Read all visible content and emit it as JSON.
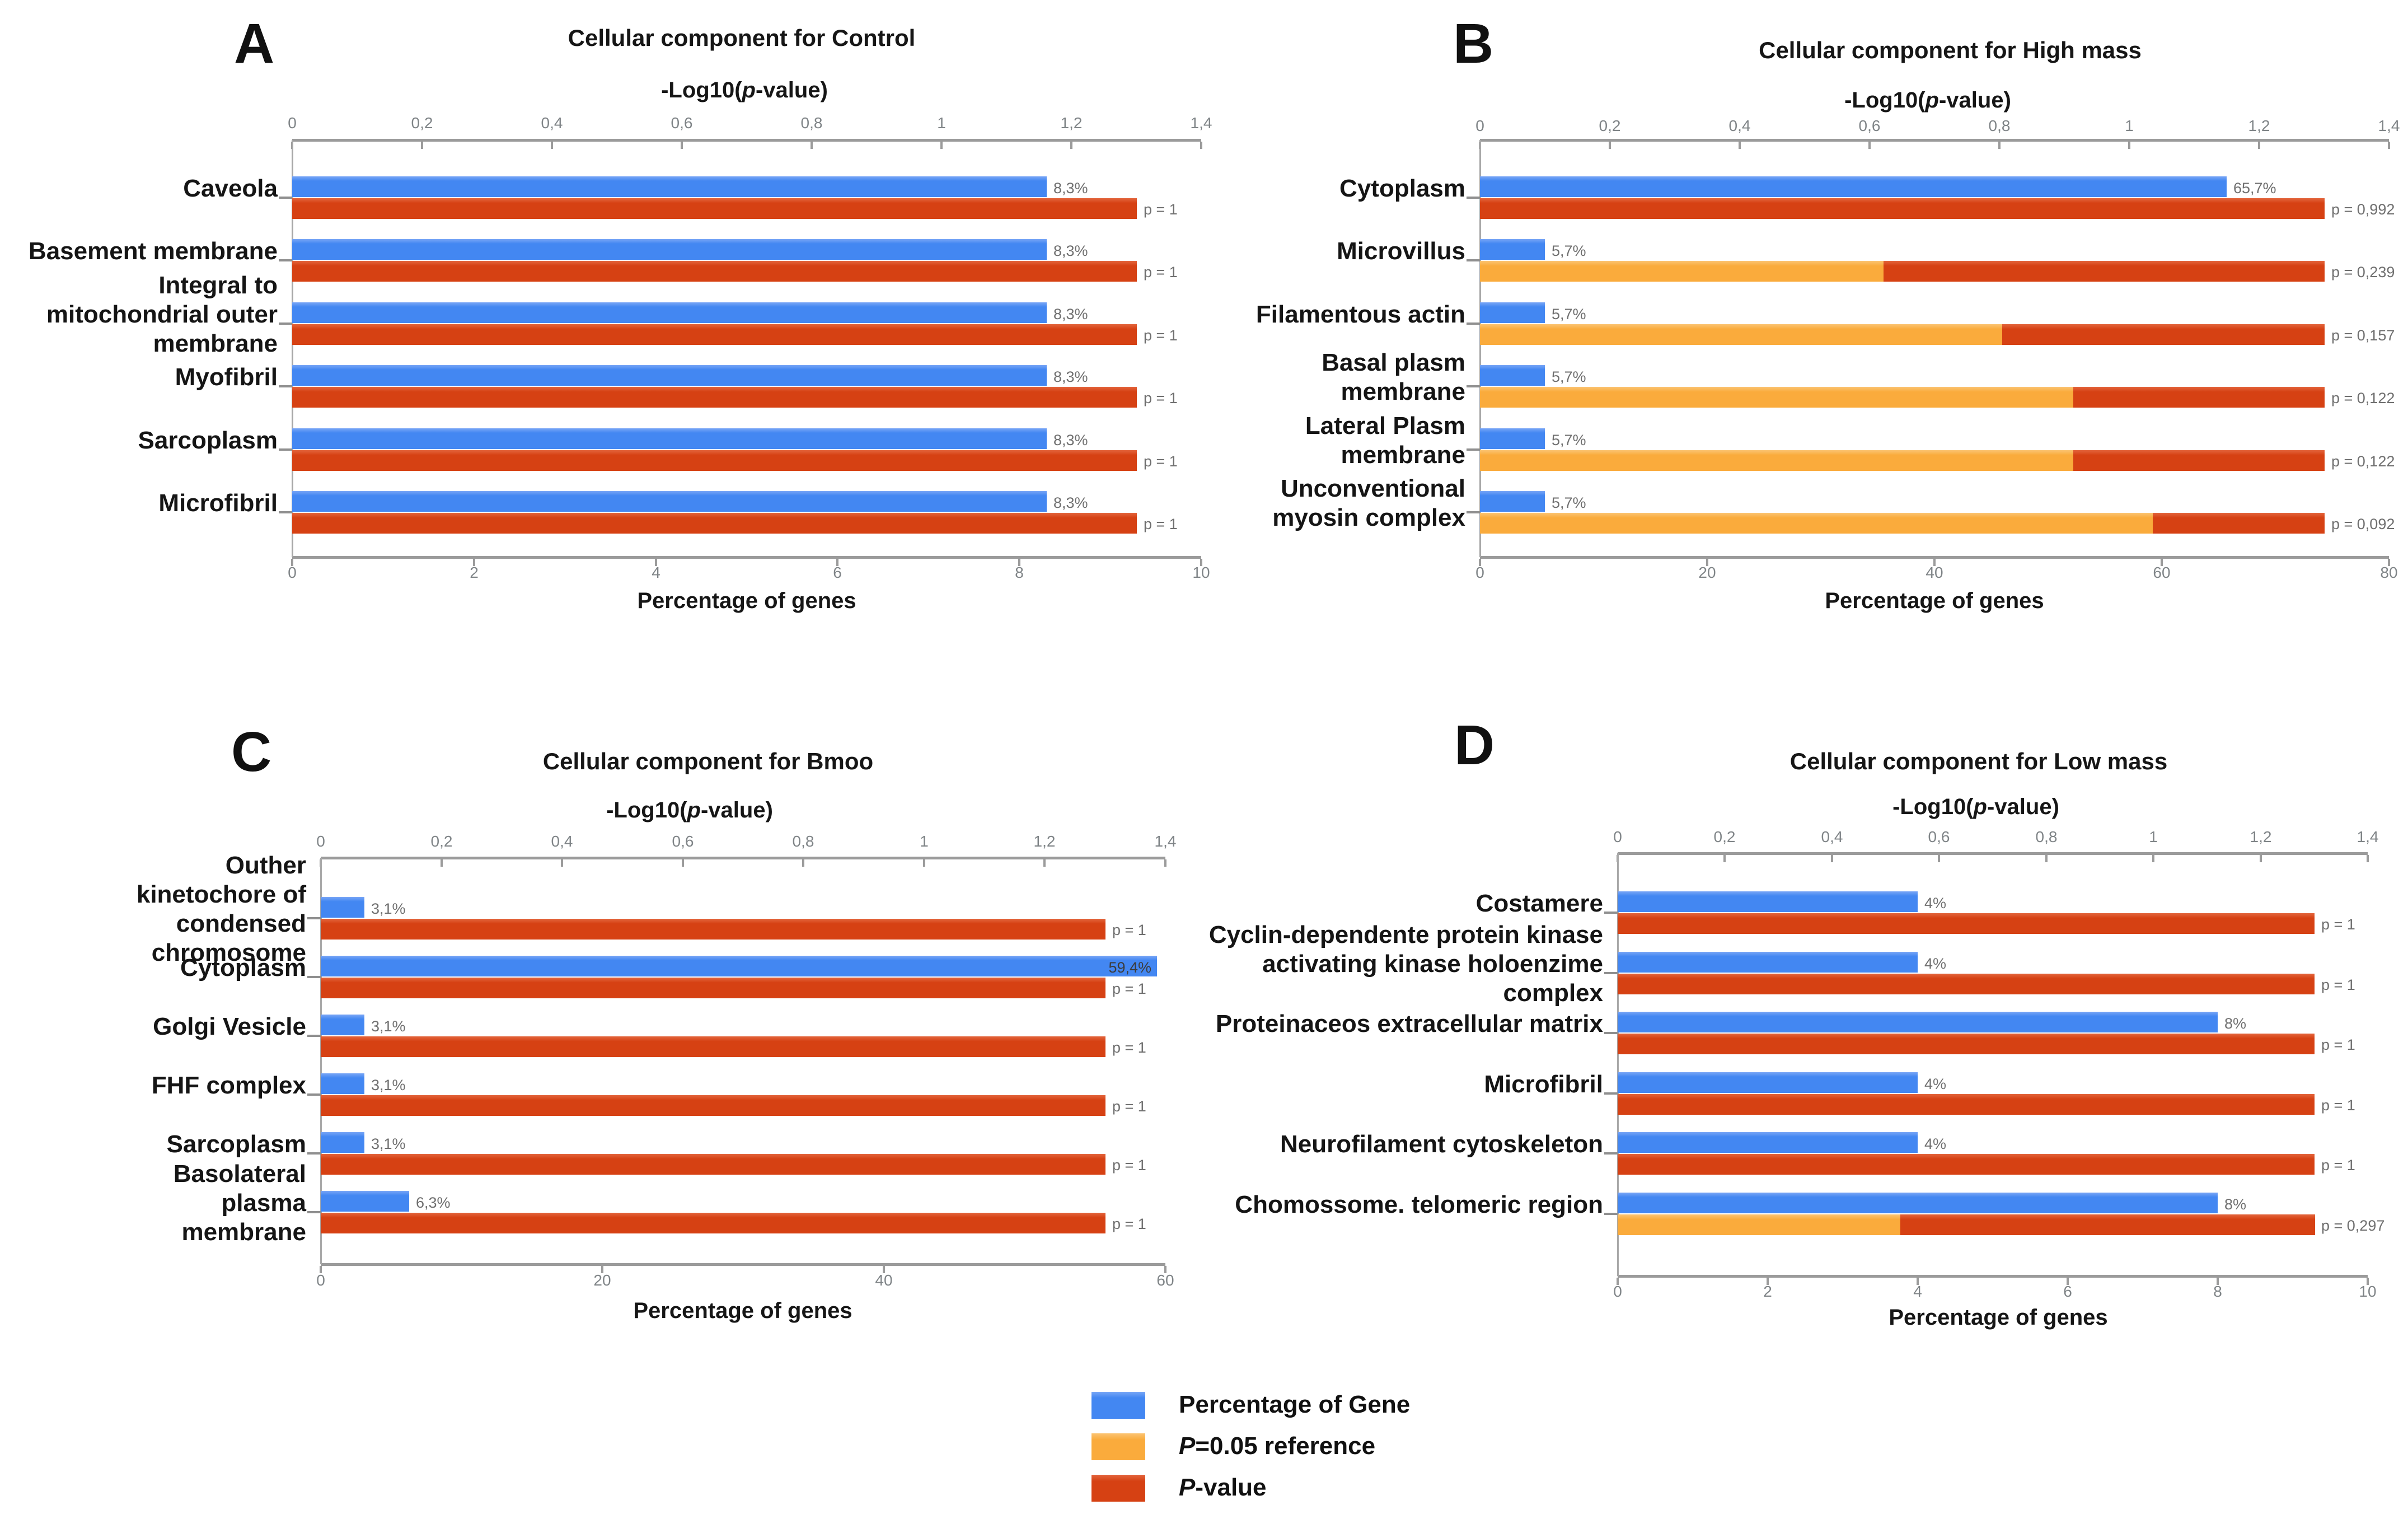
{
  "colors": {
    "blue": "#4387F2",
    "orange": "#FAAB3C",
    "red": "#D64113",
    "axis_line": "#9B9B9B",
    "tick_label": "#7F8487",
    "value_label": "#6F6F6F",
    "text": "#161616"
  },
  "top_axis_title_parts": {
    "prefix": "-Log10(",
    "italic": "p",
    "suffix": "-value)"
  },
  "legend": {
    "items": [
      {
        "swatch": "blue",
        "italic": "",
        "text": "Percentage of Gene"
      },
      {
        "swatch": "orange",
        "italic": "P",
        "text": "=0.05 reference"
      },
      {
        "swatch": "red",
        "italic": "P",
        "text": "-value"
      }
    ]
  },
  "chart_data": [
    {
      "type": "bar",
      "panel_letter": "A",
      "title": "Cellular component for Control",
      "top_axis": {
        "title": "-Log10(p-value)",
        "min": 0,
        "max": 1.4,
        "ticks": [
          "0",
          "0,2",
          "0,4",
          "0,6",
          "0,8",
          "1",
          "1,2",
          "1,4"
        ]
      },
      "bottom_axis": {
        "title": "Percentage of genes",
        "min": 0,
        "max": 10,
        "ticks": [
          "0",
          "2",
          "4",
          "6",
          "8",
          "10"
        ]
      },
      "p_reference": 0.05,
      "legend_position": "none",
      "grid": "off",
      "rows": [
        {
          "category_lines": [
            "Caveola"
          ],
          "percent": 8.3,
          "percent_label": "8,3%",
          "p_value": 1,
          "p_label": "p = 1"
        },
        {
          "category_lines": [
            "Basement membrane"
          ],
          "percent": 8.3,
          "percent_label": "8,3%",
          "p_value": 1,
          "p_label": "p = 1"
        },
        {
          "category_lines": [
            "Integral to",
            "mitochondrial outer",
            "membrane"
          ],
          "percent": 8.3,
          "percent_label": "8,3%",
          "p_value": 1,
          "p_label": "p = 1"
        },
        {
          "category_lines": [
            "Myofibril"
          ],
          "percent": 8.3,
          "percent_label": "8,3%",
          "p_value": 1,
          "p_label": "p = 1"
        },
        {
          "category_lines": [
            "Sarcoplasm"
          ],
          "percent": 8.3,
          "percent_label": "8,3%",
          "p_value": 1,
          "p_label": "p = 1"
        },
        {
          "category_lines": [
            "Microfibril"
          ],
          "percent": 8.3,
          "percent_label": "8,3%",
          "p_value": 1,
          "p_label": "p = 1"
        }
      ]
    },
    {
      "type": "bar",
      "panel_letter": "B",
      "title": "Cellular component for High mass",
      "top_axis": {
        "title": "-Log10(p-value)",
        "min": 0,
        "max": 1.4,
        "ticks": [
          "0",
          "0,2",
          "0,4",
          "0,6",
          "0,8",
          "1",
          "1,2",
          "1,4"
        ]
      },
      "bottom_axis": {
        "title": "Percentage of genes",
        "min": 0,
        "max": 80,
        "ticks": [
          "0",
          "20",
          "40",
          "60",
          "80"
        ]
      },
      "p_reference": 0.05,
      "legend_position": "none",
      "grid": "off",
      "rows": [
        {
          "category_lines": [
            "Cytoplasm"
          ],
          "percent": 65.7,
          "percent_label": "65,7%",
          "p_value": 0.992,
          "p_label": "p = 0,992"
        },
        {
          "category_lines": [
            "Microvillus"
          ],
          "percent": 5.7,
          "percent_label": "5,7%",
          "p_value": 0.239,
          "p_label": "p = 0,239"
        },
        {
          "category_lines": [
            "Filamentous actin"
          ],
          "percent": 5.7,
          "percent_label": "5,7%",
          "p_value": 0.157,
          "p_label": "p = 0,157"
        },
        {
          "category_lines": [
            "Basal plasm",
            "membrane"
          ],
          "percent": 5.7,
          "percent_label": "5,7%",
          "p_value": 0.122,
          "p_label": "p = 0,122"
        },
        {
          "category_lines": [
            "Lateral Plasm",
            "membrane"
          ],
          "percent": 5.7,
          "percent_label": "5,7%",
          "p_value": 0.122,
          "p_label": "p = 0,122"
        },
        {
          "category_lines": [
            "Unconventional",
            "myosin complex"
          ],
          "percent": 5.7,
          "percent_label": "5,7%",
          "p_value": 0.092,
          "p_label": "p = 0,092"
        }
      ]
    },
    {
      "type": "bar",
      "panel_letter": "C",
      "title": "Cellular component for Bmoo",
      "top_axis": {
        "title": "-Log10(p-value)",
        "min": 0,
        "max": 1.4,
        "ticks": [
          "0",
          "0,2",
          "0,4",
          "0,6",
          "0,8",
          "1",
          "1,2",
          "1,4"
        ]
      },
      "bottom_axis": {
        "title": "Percentage of genes",
        "min": 0,
        "max": 60,
        "ticks": [
          "0",
          "20",
          "40",
          "60"
        ]
      },
      "p_reference": 0.05,
      "legend_position": "none",
      "grid": "off",
      "rows": [
        {
          "category_lines": [
            "Outher",
            "kinetochore of",
            "condensed",
            "chromosome"
          ],
          "percent": 3.1,
          "percent_label": "3,1%",
          "p_value": 1,
          "p_label": "p = 1"
        },
        {
          "category_lines": [
            "Cytoplasm"
          ],
          "percent": 59.4,
          "percent_label": "59,4%",
          "p_value": 1,
          "p_label": "p = 1"
        },
        {
          "category_lines": [
            "Golgi Vesicle"
          ],
          "percent": 3.1,
          "percent_label": "3,1%",
          "p_value": 1,
          "p_label": "p = 1"
        },
        {
          "category_lines": [
            "FHF complex"
          ],
          "percent": 3.1,
          "percent_label": "3,1%",
          "p_value": 1,
          "p_label": "p = 1"
        },
        {
          "category_lines": [
            "Sarcoplasm"
          ],
          "percent": 3.1,
          "percent_label": "3,1%",
          "p_value": 1,
          "p_label": "p = 1"
        },
        {
          "category_lines": [
            "Basolateral",
            "plasma",
            "membrane"
          ],
          "percent": 6.3,
          "percent_label": "6,3%",
          "p_value": 1,
          "p_label": "p = 1"
        }
      ]
    },
    {
      "type": "bar",
      "panel_letter": "D",
      "title": "Cellular component for Low mass",
      "top_axis": {
        "title": "-Log10(p-value)",
        "min": 0,
        "max": 1.4,
        "ticks": [
          "0",
          "0,2",
          "0,4",
          "0,6",
          "0,8",
          "1",
          "1,2",
          "1,4"
        ]
      },
      "bottom_axis": {
        "title": "Percentage of genes",
        "min": 0,
        "max": 10,
        "ticks": [
          "0",
          "2",
          "4",
          "6",
          "8",
          "10"
        ]
      },
      "p_reference": 0.05,
      "legend_position": "none",
      "grid": "off",
      "rows": [
        {
          "category_lines": [
            "Costamere"
          ],
          "percent": 4,
          "percent_label": "4%",
          "p_value": 1,
          "p_label": "p = 1"
        },
        {
          "category_lines": [
            "Cyclin-dependente protein kinase",
            "activating kinase holoenzime",
            "complex"
          ],
          "percent": 4,
          "percent_label": "4%",
          "p_value": 1,
          "p_label": "p = 1"
        },
        {
          "category_lines": [
            "Proteinaceos extracellular matrix"
          ],
          "percent": 8,
          "percent_label": "8%",
          "p_value": 1,
          "p_label": "p = 1"
        },
        {
          "category_lines": [
            "Microfibril"
          ],
          "percent": 4,
          "percent_label": "4%",
          "p_value": 1,
          "p_label": "p = 1"
        },
        {
          "category_lines": [
            "Neurofilament cytoskeleton"
          ],
          "percent": 4,
          "percent_label": "4%",
          "p_value": 1,
          "p_label": "p = 1"
        },
        {
          "category_lines": [
            "Chomossome. telomeric region"
          ],
          "percent": 8,
          "percent_label": "8%",
          "p_value": 0.297,
          "p_label": "p = 0,297"
        }
      ]
    }
  ]
}
